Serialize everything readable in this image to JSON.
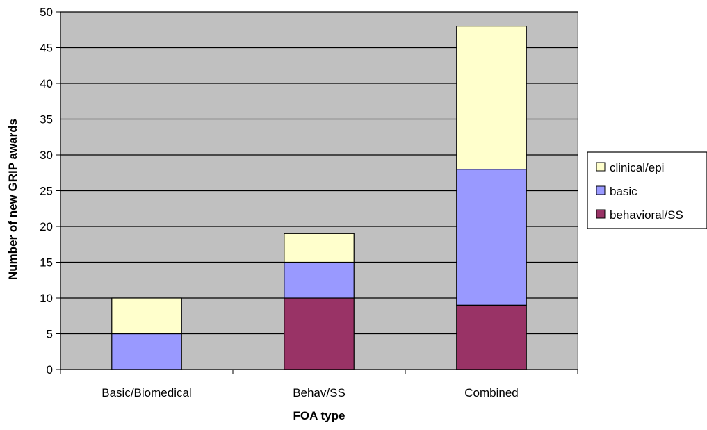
{
  "chart_data": {
    "type": "bar",
    "stacked": true,
    "categories": [
      "Basic/Biomedical",
      "Behav/SS",
      "Combined"
    ],
    "series": [
      {
        "name": "behavioral/SS",
        "values": [
          0,
          10,
          9
        ],
        "color": "#993366"
      },
      {
        "name": "basic",
        "values": [
          5,
          5,
          19
        ],
        "color": "#9999FF"
      },
      {
        "name": "clinical/epi",
        "values": [
          5,
          4,
          20
        ],
        "color": "#FFFFCC"
      }
    ],
    "legend_order": [
      "clinical/epi",
      "basic",
      "behavioral/SS"
    ],
    "title": "",
    "xlabel": "FOA type",
    "ylabel": "Number of new GRIP awards",
    "ylim": [
      0,
      50
    ],
    "yticks": [
      0,
      5,
      10,
      15,
      20,
      25,
      30,
      35,
      40,
      45,
      50
    ],
    "grid": true,
    "legend_position": "right",
    "plot_background": "#C0C0C0"
  }
}
